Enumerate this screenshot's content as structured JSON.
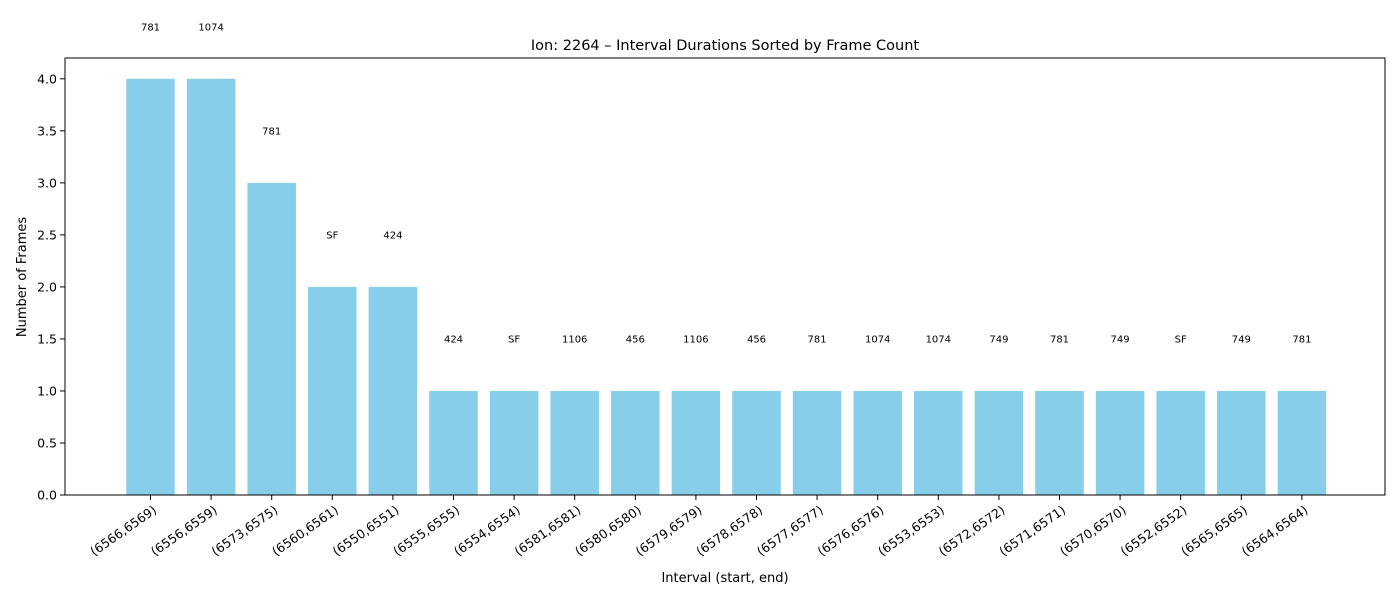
{
  "chart_data": {
    "type": "bar",
    "title": "Ion: 2264 – Interval Durations Sorted by Frame Count",
    "xlabel": "Interval (start, end)",
    "ylabel": "Number of Frames",
    "ylim": [
      0,
      4.2
    ],
    "yticks": [
      "0.0",
      "0.5",
      "1.0",
      "1.5",
      "2.0",
      "2.5",
      "3.0",
      "3.5",
      "4.0"
    ],
    "grid": false,
    "bar_color": "#87ceeb",
    "categories": [
      "(6566,6569)",
      "(6556,6559)",
      "(6573,6575)",
      "(6560,6561)",
      "(6550,6551)",
      "(6555,6555)",
      "(6554,6554)",
      "(6581,6581)",
      "(6580,6580)",
      "(6579,6579)",
      "(6578,6578)",
      "(6577,6577)",
      "(6576,6576)",
      "(6553,6553)",
      "(6572,6572)",
      "(6571,6571)",
      "(6570,6570)",
      "(6552,6552)",
      "(6565,6565)",
      "(6564,6564)"
    ],
    "values": [
      4,
      4,
      3,
      2,
      2,
      1,
      1,
      1,
      1,
      1,
      1,
      1,
      1,
      1,
      1,
      1,
      1,
      1,
      1,
      1
    ],
    "annotations": [
      "781",
      "1074",
      "781",
      "SF",
      "424",
      "424",
      "SF",
      "1106",
      "456",
      "1106",
      "456",
      "781",
      "1074",
      "1074",
      "749",
      "781",
      "749",
      "SF",
      "749",
      "781"
    ]
  }
}
